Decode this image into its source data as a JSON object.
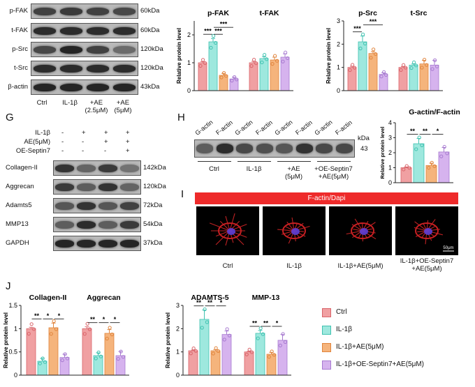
{
  "panel_labels": [
    "G",
    "H",
    "I",
    "J"
  ],
  "top_blot": {
    "rows": [
      {
        "name": "p-FAK",
        "kda": "60kDa"
      },
      {
        "name": "t-FAK",
        "kda": "60kDa"
      },
      {
        "name": "p-Src",
        "kda": "120kDa"
      },
      {
        "name": "t-Src",
        "kda": "120kDa"
      },
      {
        "name": "β-actin",
        "kda": "43kDa"
      }
    ],
    "lanes": [
      "Ctrl",
      "IL-1β",
      "+AE\n(2.5μM)",
      "+AE\n(5μM)"
    ]
  },
  "g_blot": {
    "treatments": [
      {
        "name": "IL-1β",
        "signs": [
          "-",
          "+",
          "+",
          "+"
        ]
      },
      {
        "name": "AE(5μM)",
        "signs": [
          "-",
          "-",
          "+",
          "+"
        ]
      },
      {
        "name": "OE-Septin7",
        "signs": [
          "-",
          "-",
          "-",
          "+"
        ]
      }
    ],
    "rows": [
      {
        "name": "Collagen-II",
        "kda": "142kDa"
      },
      {
        "name": "Aggrecan",
        "kda": "120kDa"
      },
      {
        "name": "Adamts5",
        "kda": "72kDa"
      },
      {
        "name": "MMP13",
        "kda": "54kDa"
      },
      {
        "name": "GAPDH",
        "kda": "37kDa"
      }
    ]
  },
  "h_blot": {
    "lane_labels": [
      "G-actin",
      "F-actin",
      "G-actin",
      "F-actin",
      "G-actin",
      "F-actin",
      "G-actin",
      "F-actin"
    ],
    "groups": [
      "Ctrl",
      "IL-1β",
      "+AE\n(5μM)",
      "+OE-Septin7\n+AE(5μM)"
    ],
    "kda_title": "kDa",
    "kda_value": "43"
  },
  "i_panel": {
    "header": "F-actin/Dapi",
    "images": [
      "Ctrl",
      "IL-1β",
      "IL-1β+AE(5μM)",
      "IL-1β+OE-Septin7\n+AE(5μM)"
    ],
    "scale_bar": "50μm"
  },
  "legend": [
    {
      "name": "Ctrl",
      "color": "#f0a0a2"
    },
    {
      "name": "IL-1β",
      "color": "#9ee8de"
    },
    {
      "name": "IL-1β+AE(5μM)",
      "color": "#f5b47c"
    },
    {
      "name": "IL-1β+OE-Septin7+AE(5μM)",
      "color": "#d6b3ee"
    }
  ],
  "chart_data": [
    {
      "type": "bar",
      "ylabel": "Relative protein level",
      "ylim": [
        0,
        2.5
      ],
      "yticks": [
        0,
        1,
        2
      ],
      "groups": [
        {
          "title": "p-FAK",
          "values": [
            1.0,
            1.75,
            0.55,
            0.42
          ],
          "errors": [
            0.04,
            0.12,
            0.07,
            0.06
          ],
          "sig": [
            {
              "from": 0,
              "to": 1,
              "text": "***"
            },
            {
              "from": 1,
              "to": 2,
              "text": "***"
            },
            {
              "from": 1,
              "to": 3,
              "text": "***"
            }
          ]
        },
        {
          "title": "t-FAK",
          "values": [
            1.0,
            1.15,
            1.1,
            1.2
          ],
          "errors": [
            0.05,
            0.07,
            0.1,
            0.12
          ],
          "sig": []
        }
      ]
    },
    {
      "type": "bar",
      "ylabel": "Relative protein level",
      "ylim": [
        0,
        3
      ],
      "yticks": [
        0,
        1,
        2,
        3
      ],
      "groups": [
        {
          "title": "p-Src",
          "values": [
            1.0,
            2.1,
            1.6,
            0.7
          ],
          "errors": [
            0.05,
            0.25,
            0.08,
            0.07
          ],
          "sig": [
            {
              "from": 0,
              "to": 1,
              "text": "***"
            },
            {
              "from": 1,
              "to": 3,
              "text": "***"
            }
          ]
        },
        {
          "title": "t-Src",
          "values": [
            1.0,
            1.1,
            1.15,
            1.1
          ],
          "errors": [
            0.04,
            0.05,
            0.15,
            0.2
          ],
          "sig": []
        }
      ]
    },
    {
      "type": "bar",
      "title": "G-actin/F-actin",
      "ylabel": "Relative protein level",
      "ylim": [
        0,
        4
      ],
      "yticks": [
        0,
        1,
        2,
        3,
        4
      ],
      "groups": [
        {
          "title": "",
          "values": [
            1.0,
            2.6,
            1.15,
            2.05
          ],
          "errors": [
            0.05,
            0.35,
            0.15,
            0.3
          ],
          "sig": [
            {
              "from": 0,
              "to": 1,
              "text": "**"
            },
            {
              "from": 1,
              "to": 2,
              "text": "**"
            },
            {
              "from": 2,
              "to": 3,
              "text": "*"
            }
          ]
        }
      ]
    },
    {
      "type": "bar",
      "ylabel": "Relative protein level",
      "ylim": [
        0,
        1.5
      ],
      "yticks": [
        0,
        0.5,
        1,
        1.5
      ],
      "groups": [
        {
          "title": "Collagen-II",
          "values": [
            1.0,
            0.3,
            1.02,
            0.38
          ],
          "errors": [
            0.03,
            0.06,
            0.1,
            0.07
          ],
          "sig": [
            {
              "from": 0,
              "to": 1,
              "text": "**"
            },
            {
              "from": 1,
              "to": 2,
              "text": "*"
            },
            {
              "from": 2,
              "to": 3,
              "text": "*"
            }
          ]
        },
        {
          "title": "Aggrecan",
          "values": [
            1.0,
            0.42,
            0.9,
            0.42
          ],
          "errors": [
            0.04,
            0.06,
            0.08,
            0.09
          ],
          "sig": [
            {
              "from": 0,
              "to": 1,
              "text": "**"
            },
            {
              "from": 1,
              "to": 2,
              "text": "*"
            },
            {
              "from": 2,
              "to": 3,
              "text": "*"
            }
          ]
        }
      ]
    },
    {
      "type": "bar",
      "ylabel": "Relative protein level",
      "ylim": [
        0,
        3
      ],
      "yticks": [
        0,
        1,
        2,
        3
      ],
      "groups": [
        {
          "title": "ADAMTS-5",
          "values": [
            1.05,
            2.4,
            1.05,
            1.75
          ],
          "errors": [
            0.03,
            0.4,
            0.05,
            0.15
          ],
          "sig": [
            {
              "from": 0,
              "to": 1,
              "text": "**"
            },
            {
              "from": 1,
              "to": 2,
              "text": "**"
            },
            {
              "from": 2,
              "to": 3,
              "text": "*"
            }
          ]
        },
        {
          "title": "MMP-13",
          "values": [
            1.0,
            1.8,
            0.9,
            1.5
          ],
          "errors": [
            0.03,
            0.12,
            0.08,
            0.25
          ],
          "sig": [
            {
              "from": 0,
              "to": 1,
              "text": "**"
            },
            {
              "from": 1,
              "to": 2,
              "text": "**"
            },
            {
              "from": 2,
              "to": 3,
              "text": "*"
            }
          ]
        }
      ]
    }
  ]
}
